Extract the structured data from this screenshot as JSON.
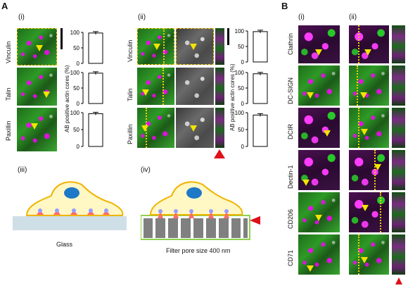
{
  "panels": {
    "A": "A",
    "B": "B",
    "A_i": "(i)",
    "A_ii": "(ii)",
    "A_iii": "(iii)",
    "A_iv": "(iv)",
    "B_i": "(i)",
    "B_ii": "(ii)"
  },
  "panel_A": {
    "rows": [
      "Vinculin",
      "Talin",
      "Paxillin"
    ],
    "chart_ylabel": "AB positive actin cores (%)",
    "schematic_iii_caption": "Glass",
    "schematic_iv_caption": "Filter pore size 400 nm"
  },
  "panel_B": {
    "rows": [
      "Clathrin",
      "DC-SIGN",
      "DCIR",
      "Dectin-1",
      "CD206",
      "CD71"
    ]
  },
  "colors": {
    "arrow_red": "#e0101a",
    "cell_fill": "#fff7c4",
    "cell_outline": "#f0b400",
    "nucleus": "#1e78c8",
    "glass": "#cfdfe8",
    "filter_pore": "#808080",
    "filter_edge": "#8fd14f"
  },
  "chart_data": [
    {
      "type": "bar",
      "panel": "A(i) Vinculin",
      "categories": [
        ""
      ],
      "values": [
        98
      ],
      "ylabel": "",
      "ylim": [
        0,
        100
      ],
      "yticks": [
        "0",
        "50",
        "100"
      ]
    },
    {
      "type": "bar",
      "panel": "A(i) Talin",
      "categories": [
        ""
      ],
      "values": [
        98
      ],
      "ylabel": "AB positive actin cores (%)",
      "ylim": [
        0,
        100
      ],
      "yticks": [
        "0",
        "50",
        "100"
      ]
    },
    {
      "type": "bar",
      "panel": "A(i) Paxillin",
      "categories": [
        ""
      ],
      "values": [
        97
      ],
      "ylabel": "",
      "ylim": [
        0,
        100
      ],
      "yticks": [
        "0",
        "50",
        "100"
      ]
    },
    {
      "type": "bar",
      "panel": "A(ii) Vinculin",
      "categories": [
        ""
      ],
      "values": [
        98
      ],
      "ylabel": "",
      "ylim": [
        0,
        100
      ],
      "yticks": [
        "0",
        "50",
        "100"
      ]
    },
    {
      "type": "bar",
      "panel": "A(ii) Talin",
      "categories": [
        ""
      ],
      "values": [
        96
      ],
      "ylabel": "AB positive actin cores (%)",
      "ylim": [
        0,
        100
      ],
      "yticks": [
        "0",
        "50",
        "100"
      ]
    },
    {
      "type": "bar",
      "panel": "A(ii) Paxillin",
      "categories": [
        ""
      ],
      "values": [
        93
      ],
      "ylabel": "",
      "ylim": [
        0,
        100
      ],
      "yticks": [
        "0",
        "50",
        "100"
      ]
    }
  ]
}
